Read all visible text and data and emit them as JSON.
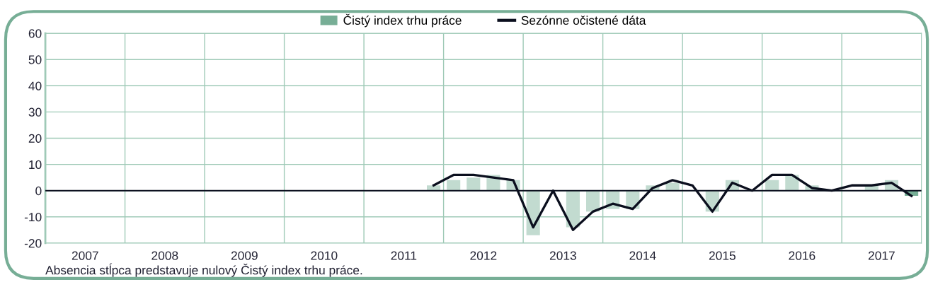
{
  "chart_data": {
    "type": "bar",
    "x": [
      2011.875,
      2012.125,
      2012.375,
      2012.625,
      2012.875,
      2013.125,
      2013.375,
      2013.625,
      2013.875,
      2014.125,
      2014.375,
      2014.625,
      2014.875,
      2015.125,
      2015.375,
      2015.625,
      2015.875,
      2016.125,
      2016.375,
      2016.625,
      2016.875,
      2017.125,
      2017.375,
      2017.625,
      2017.875
    ],
    "series": [
      {
        "name": "Čistý index trhu práce",
        "color": "#77ae96",
        "colors": [
          "#c2dbd0",
          "#c2dbd0",
          "#c2dbd0",
          "#c2dbd0",
          "#c2dbd0",
          "#c2dbd0",
          "#c2dbd0",
          "#c2dbd0",
          "#c2dbd0",
          "#c2dbd0",
          "#c2dbd0",
          "#c2dbd0",
          "#c2dbd0",
          "#c2dbd0",
          "#c2dbd0",
          "#c2dbd0",
          "#c2dbd0",
          "#c2dbd0",
          "#c2dbd0",
          "#c2dbd0",
          "#c2dbd0",
          "#c2dbd0",
          "#c2dbd0",
          "#c2dbd0",
          "#77ae96"
        ],
        "values": [
          2,
          4,
          5,
          6,
          4,
          -17,
          0,
          -14,
          -8,
          -7,
          -7,
          2,
          3,
          0,
          -8,
          4,
          0,
          4,
          6,
          2,
          0,
          0,
          2,
          4,
          -2
        ]
      },
      {
        "name": "Sezónne očistené dáta",
        "type": "line",
        "color": "#0b0f1e",
        "values": [
          2,
          6,
          6,
          5,
          4,
          -14,
          0,
          -15,
          -8,
          -5,
          -7,
          1,
          4,
          2,
          -8,
          3,
          0,
          6,
          6,
          1,
          0,
          2,
          2,
          3,
          -2
        ]
      }
    ],
    "xlim": [
      2007,
      2018
    ],
    "xticks": [
      {
        "value": 2008,
        "label": null
      },
      {
        "value": 2009,
        "label": null
      },
      {
        "value": 2010,
        "label": null
      },
      {
        "value": 2011,
        "label": null
      },
      {
        "value": 2012,
        "label": null
      },
      {
        "value": 2013,
        "label": null
      },
      {
        "value": 2014,
        "label": null
      },
      {
        "value": 2015,
        "label": null
      },
      {
        "value": 2016,
        "label": null
      },
      {
        "value": 2017,
        "label": null
      },
      {
        "value": 2007.5,
        "label": "2007"
      },
      {
        "value": 2008.5,
        "label": "2008"
      },
      {
        "value": 2009.5,
        "label": "2009"
      },
      {
        "value": 2010.5,
        "label": "2010"
      },
      {
        "value": 2011.5,
        "label": "2011"
      },
      {
        "value": 2012.5,
        "label": "2012"
      },
      {
        "value": 2013.5,
        "label": "2013"
      },
      {
        "value": 2014.5,
        "label": "2014"
      },
      {
        "value": 2015.5,
        "label": "2015"
      },
      {
        "value": 2016.5,
        "label": "2016"
      },
      {
        "value": 2017.5,
        "label": "2017"
      }
    ],
    "ylim": [
      -20,
      60
    ],
    "yticks": [
      -20,
      -10,
      0,
      10,
      20,
      30,
      40,
      50,
      60
    ],
    "ref_lines": [
      {
        "axis": "y",
        "value": 0,
        "color": "#0b0f1e"
      }
    ],
    "grid": true,
    "legend": "top",
    "annotations": [
      "Absencia stĺpca predstavuje nulový Čistý index trhu práce."
    ]
  }
}
